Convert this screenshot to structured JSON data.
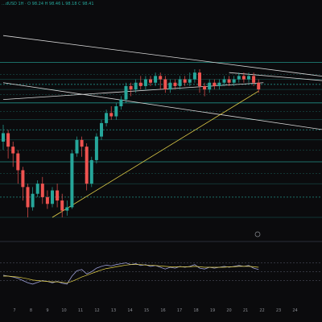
{
  "header": {
    "info_text": "…dUSD 1H  ·  O 98.24  H 98.46  L 98.18  C 98.41"
  },
  "colors": {
    "background": "#0b0b0d",
    "bullish": "#26a69a",
    "bearish": "#ef5350",
    "support_resistance": "#26a69a",
    "trendline_white": "#d8d8d8",
    "trendline_yellow": "#e6d34a",
    "rsi_line": "#9c9fd6",
    "rsi_ma": "#e6d34a"
  },
  "x_axis": {
    "labels": [
      "7",
      "8",
      "9",
      "10",
      "11",
      "12",
      "13",
      "14",
      "15",
      "16",
      "17",
      "18",
      "19",
      "20",
      "21",
      "22",
      "23",
      "24"
    ]
  },
  "chart_data": {
    "type": "candlestick",
    "candles": [
      [
        45,
        50,
        40,
        55
      ],
      [
        50,
        42,
        35,
        52
      ],
      [
        42,
        38,
        30,
        45
      ],
      [
        38,
        28,
        20,
        40
      ],
      [
        28,
        18,
        10,
        30
      ],
      [
        18,
        6,
        0,
        20
      ],
      [
        6,
        14,
        4,
        18
      ],
      [
        14,
        20,
        12,
        22
      ],
      [
        20,
        12,
        8,
        24
      ],
      [
        12,
        8,
        5,
        16
      ],
      [
        8,
        16,
        6,
        18
      ],
      [
        16,
        10,
        6,
        20
      ],
      [
        10,
        4,
        0,
        14
      ],
      [
        4,
        6,
        1,
        10
      ],
      [
        6,
        38,
        5,
        40
      ],
      [
        38,
        46,
        36,
        48
      ],
      [
        46,
        42,
        36,
        48
      ],
      [
        42,
        20,
        16,
        44
      ],
      [
        20,
        34,
        18,
        36
      ],
      [
        34,
        48,
        32,
        50
      ],
      [
        48,
        56,
        46,
        58
      ],
      [
        56,
        62,
        54,
        64
      ],
      [
        62,
        60,
        58,
        66
      ],
      [
        60,
        66,
        58,
        68
      ],
      [
        66,
        70,
        64,
        72
      ],
      [
        70,
        78,
        68,
        80
      ],
      [
        78,
        76,
        72,
        80
      ],
      [
        76,
        80,
        74,
        82
      ],
      [
        80,
        78,
        76,
        84
      ],
      [
        78,
        82,
        76,
        84
      ],
      [
        82,
        80,
        78,
        84
      ],
      [
        80,
        84,
        78,
        86
      ],
      [
        84,
        82,
        76,
        86
      ],
      [
        82,
        76,
        74,
        84
      ],
      [
        76,
        80,
        74,
        82
      ],
      [
        80,
        78,
        76,
        82
      ],
      [
        78,
        82,
        76,
        84
      ],
      [
        82,
        80,
        78,
        84
      ],
      [
        80,
        82,
        78,
        86
      ],
      [
        82,
        86,
        80,
        88
      ],
      [
        86,
        78,
        74,
        88
      ],
      [
        78,
        76,
        72,
        80
      ],
      [
        76,
        80,
        74,
        82
      ],
      [
        80,
        78,
        76,
        82
      ],
      [
        78,
        80,
        76,
        82
      ],
      [
        80,
        82,
        78,
        84
      ],
      [
        82,
        80,
        78,
        84
      ],
      [
        80,
        82,
        78,
        84
      ],
      [
        82,
        84,
        80,
        86
      ],
      [
        84,
        82,
        80,
        86
      ],
      [
        82,
        84,
        80,
        86
      ],
      [
        84,
        80,
        78,
        86
      ],
      [
        80,
        76,
        74,
        82
      ]
    ],
    "horizontal_levels": [
      92,
      85,
      82,
      79,
      76,
      73,
      68,
      63,
      58,
      52,
      46,
      40,
      33,
      26,
      20,
      12,
      0
    ],
    "trendlines": [
      {
        "color": "trendline_white",
        "points": [
          [
            0,
            108
          ],
          [
            70,
            82
          ]
        ]
      },
      {
        "color": "trendline_white",
        "points": [
          [
            0,
            70
          ],
          [
            53,
            80
          ]
        ]
      },
      {
        "color": "trendline_white",
        "points": [
          [
            0,
            80
          ],
          [
            70,
            50
          ]
        ]
      },
      {
        "color": "trendline_yellow",
        "points": [
          [
            10,
            0
          ],
          [
            52,
            75
          ]
        ]
      },
      {
        "color": "trendline_white",
        "points": [
          [
            46,
            86
          ],
          [
            70,
            80
          ]
        ]
      }
    ],
    "rsi": {
      "ylim": [
        0,
        100
      ],
      "values": [
        42,
        40,
        38,
        35,
        30,
        25,
        22,
        26,
        30,
        28,
        25,
        28,
        24,
        22,
        40,
        52,
        55,
        45,
        50,
        58,
        62,
        65,
        63,
        66,
        68,
        70,
        66,
        68,
        64,
        66,
        62,
        64,
        60,
        56,
        60,
        58,
        62,
        60,
        62,
        66,
        58,
        56,
        60,
        58,
        60,
        62,
        60,
        62,
        64,
        62,
        64,
        58,
        55
      ],
      "ma_values": [
        40,
        40,
        39,
        38,
        36,
        34,
        31,
        30,
        29,
        28,
        27,
        27,
        26,
        25,
        28,
        33,
        38,
        42,
        46,
        50,
        54,
        57,
        59,
        61,
        63,
        65,
        66,
        66,
        66,
        65,
        65,
        64,
        63,
        62,
        61,
        61,
        61,
        61,
        61,
        62,
        61,
        60,
        60,
        60,
        60,
        60,
        61,
        61,
        62,
        62,
        62,
        61,
        60
      ]
    }
  }
}
